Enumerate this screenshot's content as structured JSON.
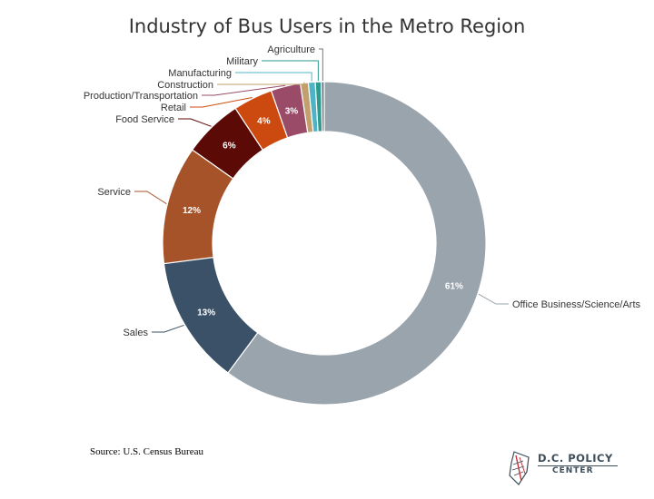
{
  "chart_data": {
    "type": "pie",
    "style": "donut",
    "title": "Industry of Bus Users in the Metro Region",
    "slices": [
      {
        "label": "Office Business/Science/Arts",
        "value": 61,
        "data_label": "61%",
        "color": "#9aa4ad"
      },
      {
        "label": "Sales",
        "value": 13,
        "data_label": "13%",
        "color": "#3b5168"
      },
      {
        "label": "Service",
        "value": 12,
        "data_label": "12%",
        "color": "#a6532a"
      },
      {
        "label": "Food Service",
        "value": 6,
        "data_label": "6%",
        "color": "#5b0a06"
      },
      {
        "label": "Retail",
        "value": 4,
        "data_label": "4%",
        "color": "#cc4a10"
      },
      {
        "label": "Production/Transportation",
        "value": 3,
        "data_label": "3%",
        "color": "#9a4b68"
      },
      {
        "label": "Construction",
        "value": 0.8,
        "data_label": "",
        "color": "#c2a06e"
      },
      {
        "label": "Manufacturing",
        "value": 0.7,
        "data_label": "",
        "color": "#4fb3c7"
      },
      {
        "label": "Military",
        "value": 0.6,
        "data_label": "",
        "color": "#2c9a8e"
      },
      {
        "label": "Agriculture",
        "value": 0.3,
        "data_label": "",
        "color": "#6a7a84"
      }
    ]
  },
  "source": "Source: U.S. Census Bureau",
  "brand": {
    "name_line1": "D.C. POLICY",
    "name_line2": "CENTER"
  }
}
